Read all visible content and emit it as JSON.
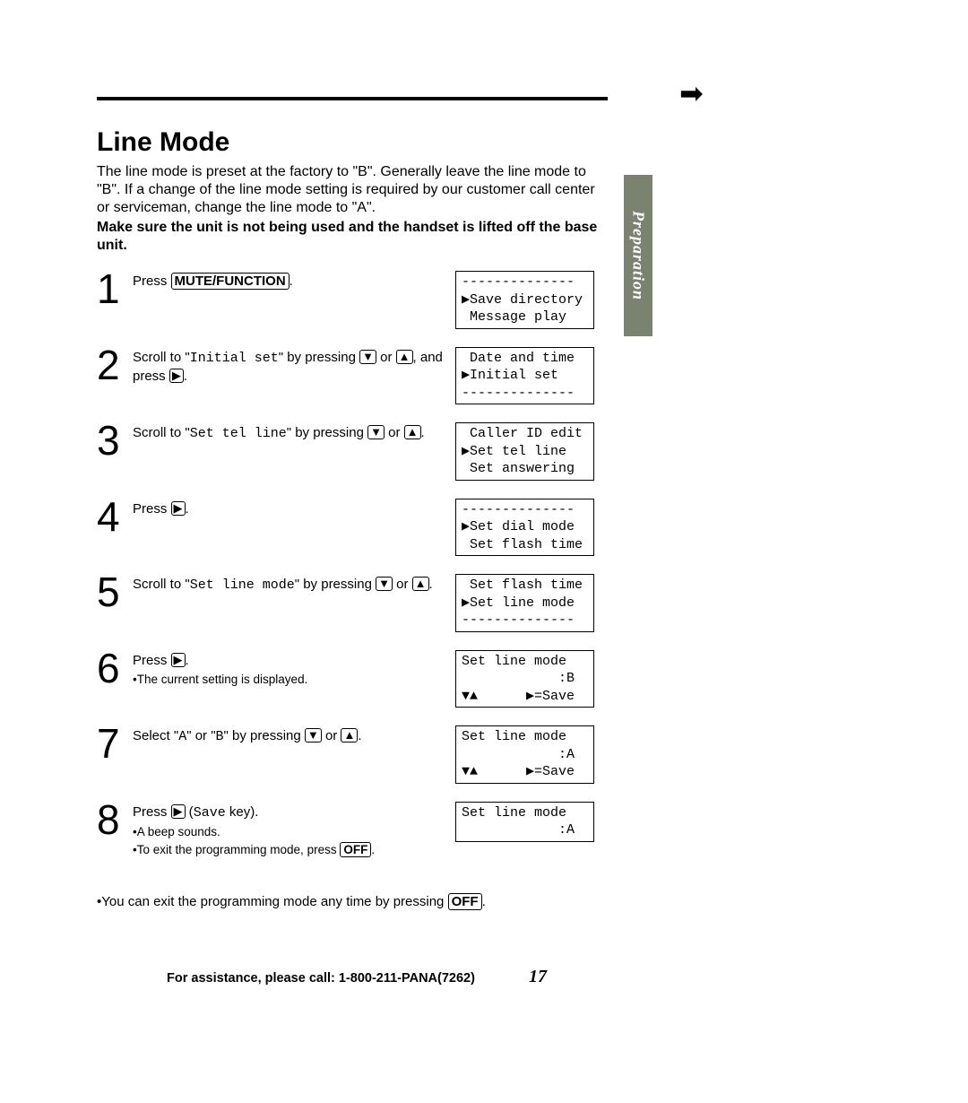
{
  "colors": {
    "tab_bg": "#7a8270",
    "tab_text": "#ffffff",
    "text": "#000000",
    "bg": "#ffffff"
  },
  "side_tab": "Preparation",
  "corner_arrow": "➡",
  "title": "Line Mode",
  "intro": "The line mode is preset at the factory to \"B\". Generally leave the line mode to \"B\". If a change of the line mode setting is required by our customer call center or serviceman, change the line mode to \"A\".",
  "intro_bold": "Make sure the unit is not being used and the handset is lifted off the base unit.",
  "keys": {
    "mute_function": "MUTE/FUNCTION",
    "off": "OFF",
    "down": "▼",
    "up": "▲",
    "right": "▶"
  },
  "steps": [
    {
      "n": "1",
      "text_pre": "Press ",
      "key": "MUTE/FUNCTION",
      "text_post": ".",
      "display": "--------------\n▶Save directory\n Message play"
    },
    {
      "n": "2",
      "html": "scroll_initial",
      "display": " Date and time\n▶Initial set\n--------------"
    },
    {
      "n": "3",
      "html": "scroll_settel",
      "display": " Caller ID edit\n▶Set tel line\n Set answering"
    },
    {
      "n": "4",
      "html": "press_right",
      "display": "--------------\n▶Set dial mode\n Set flash time"
    },
    {
      "n": "5",
      "html": "scroll_linemode",
      "display": " Set flash time\n▶Set line mode\n--------------"
    },
    {
      "n": "6",
      "html": "press_right_current",
      "display": "Set line mode\n            :B\n▼▲      ▶=Save"
    },
    {
      "n": "7",
      "html": "select_ab",
      "display": "Set line mode\n            :A\n▼▲      ▶=Save"
    },
    {
      "n": "8",
      "html": "press_save",
      "display": "Set line mode\n            :A"
    }
  ],
  "step_text": {
    "s2_a": "Scroll to \"",
    "s2_mono": "Initial set",
    "s2_b": "\" by pressing ",
    "s2_c": " or ",
    "s2_d": ", and press ",
    "s2_e": ".",
    "s3_a": "Scroll to \"",
    "s3_mono": "Set tel line",
    "s3_b": "\" by pressing ",
    "s3_c": " or ",
    "s3_d": ".",
    "s4_a": "Press ",
    "s4_b": ".",
    "s5_a": "Scroll to \"",
    "s5_mono": "Set line mode",
    "s5_b": "\" by pressing ",
    "s5_c": " or ",
    "s5_d": ".",
    "s6_a": "Press ",
    "s6_b": ".",
    "s6_sub": "•The current setting is displayed.",
    "s7_a": "Select \"",
    "s7_m1": "A",
    "s7_b": "\" or \"",
    "s7_m2": "B",
    "s7_c": "\" by pressing ",
    "s7_d": " or ",
    "s7_e": ".",
    "s8_a": "Press ",
    "s8_b": " (",
    "s8_mono": "Save",
    "s8_c": " key).",
    "s8_sub1": "•A beep sounds.",
    "s8_sub2a": "•To exit the programming mode, press ",
    "s8_sub2b": "."
  },
  "footnote_a": "•You can exit the programming mode any time by pressing ",
  "footnote_b": ".",
  "footer": {
    "assist": "For assistance, please call: 1-800-211-PANA(7262)",
    "page": "17"
  }
}
